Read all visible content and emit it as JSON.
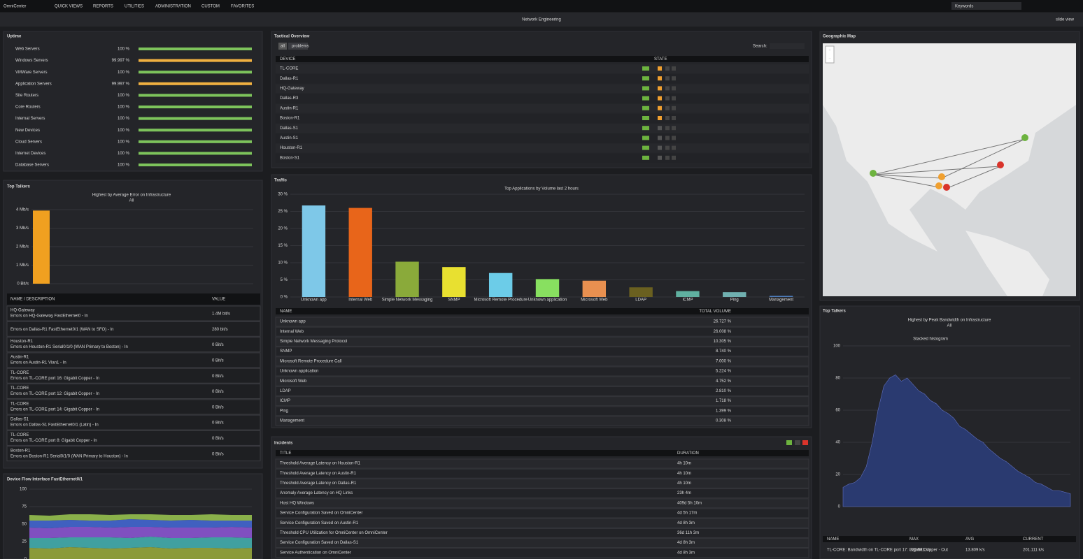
{
  "nav": {
    "logo": "OmniCenter",
    "menu": [
      "QUICK VIEWS",
      "REPORTS",
      "UTILITIES",
      "ADMINISTRATION",
      "CUSTOM",
      "FAVORITES"
    ],
    "search": "Keywords"
  },
  "header": {
    "title": "Network Engineering",
    "slide_view": "slide view"
  },
  "uptime": {
    "title": "Uptime",
    "rows": [
      {
        "name": "Web Servers",
        "value": 100,
        "label": "100 %",
        "color": "#7dc35b"
      },
      {
        "name": "Windows Servers",
        "value": 99.997,
        "label": "99.997 %",
        "color": "#f0b040"
      },
      {
        "name": "VMWare Servers",
        "value": 100,
        "label": "100 %",
        "color": "#7dc35b"
      },
      {
        "name": "Application Servers",
        "value": 99.997,
        "label": "99.997 %",
        "color": "#f0b040"
      },
      {
        "name": "Site Routers",
        "value": 100,
        "label": "100 %",
        "color": "#7dc35b"
      },
      {
        "name": "Core Routers",
        "value": 100,
        "label": "100 %",
        "color": "#7dc35b"
      },
      {
        "name": "Internal Servers",
        "value": 100,
        "label": "100 %",
        "color": "#7dc35b"
      },
      {
        "name": "New Devices",
        "value": 100,
        "label": "100 %",
        "color": "#7dc35b"
      },
      {
        "name": "Cloud Servers",
        "value": 100,
        "label": "100 %",
        "color": "#7dc35b"
      },
      {
        "name": "Internet Devices",
        "value": 100,
        "label": "100 %",
        "color": "#7dc35b"
      },
      {
        "name": "Database Servers",
        "value": 100,
        "label": "100 %",
        "color": "#7dc35b"
      }
    ]
  },
  "tactical": {
    "title": "Tactical Overview",
    "filters": [
      "all",
      "problems"
    ],
    "search": "Search:",
    "columns": [
      "DEVICE",
      "STATE"
    ],
    "devices": [
      "TL-CORE",
      "Dallas-R1",
      "HQ-Gateway",
      "Dallas-R3",
      "Austin-R1",
      "Boston-R1",
      "Dallas-S1",
      "Austin-S1",
      "Houston-R1",
      "Boston-S1"
    ]
  },
  "top_talkers_errors": {
    "title": "Top Talkers",
    "subtitle": "Highest by Average Error on Infrastructure",
    "scope": "All",
    "chart": {
      "type": "bar",
      "values": [
        3.95
      ],
      "color": "#f0a020",
      "ylim": [
        0,
        4
      ],
      "yticks": [
        {
          "value": 0,
          "label": "0 Bit/s"
        },
        {
          "value": 1,
          "label": "1 Mb/s"
        },
        {
          "value": 2,
          "label": "2 Mb/s"
        },
        {
          "value": 3,
          "label": "3 Mb/s"
        },
        {
          "value": 4,
          "label": "4 Mb/s"
        }
      ]
    },
    "columns": [
      "NAME / DESCRIPTION",
      "VALUE"
    ],
    "rows": [
      {
        "name": "HQ-Gateway",
        "color": "#f0a020",
        "description": "Errors on HQ-Gateway FastEthernet0 - In",
        "value": "1.4M bit/s"
      },
      {
        "description": "Errors on Dallas-R1 FastEthernet0/1 (WAN to SFO) - In",
        "value": "280 bit/s"
      },
      {
        "name": "Houston-R1",
        "color": "#5aa0e0",
        "description": "Errors on Houston-R1 Serial0/1/0 (WAN Primary to Boston) - In",
        "value": "0 Bit/s"
      },
      {
        "name": "Austin-R1",
        "color": "#a070e0",
        "description": "Errors on Austin-R1 Vlan1 - In",
        "value": "0 Bit/s"
      },
      {
        "name": "TL-CORE",
        "color": "#e05050",
        "description": "Errors on TL-CORE port 16: Gigabit Copper - In",
        "value": "0 Bit/s"
      },
      {
        "name": "TL-CORE",
        "color": "#70c040",
        "description": "Errors on TL-CORE port 12: Gigabit Copper - In",
        "value": "0 Bit/s"
      },
      {
        "name": "TL-CORE",
        "color": "#a06040",
        "description": "Errors on TL-CORE port 14: Gigabit Copper - In",
        "value": "0 Bit/s"
      },
      {
        "name": "Dallas-S1",
        "color": "#a0a040",
        "description": "Errors on Dallas-S1 FastEthernet0/1 (Latin) - In",
        "value": "0 Bit/s"
      },
      {
        "name": "TL-CORE",
        "color": "#e060c0",
        "description": "Errors on TL-CORE port 8: Gigabit Copper - In",
        "value": "0 Bit/s"
      },
      {
        "name": "Boston-R1",
        "color": "#60c060",
        "description": "Errors on Boston-R1 Serial0/1/0 (WAN Primary to Houston) - In",
        "value": "0 Bit/s"
      }
    ]
  },
  "traffic": {
    "title": "Traffic",
    "subtitle": "Top Applications by Volume last 2 hours",
    "chart": {
      "type": "bar",
      "categories": [
        "Unknown app",
        "Internal Web",
        "Simple Network Messaging",
        "SNMP",
        "Microsoft Remote Procedure",
        "Unknown application",
        "Microsoft Web",
        "LDAP",
        "ICMP",
        "Ping",
        "Management"
      ],
      "values": [
        26.727,
        26.008,
        10.305,
        8.74,
        7.0,
        5.224,
        4.752,
        2.81,
        1.718,
        1.399,
        0.308
      ],
      "colors": [
        "#7ec8e8",
        "#e8651a",
        "#8aaa3a",
        "#e8e030",
        "#6ccce8",
        "#88e060",
        "#e89050",
        "#6a6020",
        "#60b0a0",
        "#70b0b0",
        "#5080c0"
      ],
      "ylim": [
        0,
        30
      ],
      "yticks": [
        {
          "value": 0,
          "label": "0 %"
        },
        {
          "value": 5,
          "label": "5 %"
        },
        {
          "value": 10,
          "label": "10 %"
        },
        {
          "value": 15,
          "label": "15 %"
        },
        {
          "value": 20,
          "label": "20 %"
        },
        {
          "value": 25,
          "label": "25 %"
        },
        {
          "value": 30,
          "label": "30 %"
        }
      ],
      "grid": true
    },
    "columns": [
      "NAME",
      "TOTAL VOLUME"
    ],
    "table_names": [
      "Unknown app",
      "Internal Web",
      "Simple Network Messaging Protocol",
      "SNMP",
      "Microsoft Remote Procedure Call",
      "Unknown application",
      "Microsoft Web",
      "LDAP",
      "ICMP",
      "Ping",
      "Management"
    ],
    "value_labels": [
      "26.727 %",
      "26.008 %",
      "10.305 %",
      "8.740 %",
      "7.000 %",
      "5.224 %",
      "4.752 %",
      "2.810 %",
      "1.718 %",
      "1.399 %",
      "0.308 %"
    ]
  },
  "incidents": {
    "title": "Incidents",
    "columns": [
      "TITLE",
      "DURATION"
    ],
    "rows": [
      [
        "Threshold Average Latency on Houston-R1",
        "4h 10m"
      ],
      [
        "Threshold Average Latency on Austin-R1",
        "4h 10m"
      ],
      [
        "Threshold Average Latency on Dallas-R1",
        "4h 10m"
      ],
      [
        "Anomaly Average Latency on HQ Links",
        "23h 4m"
      ],
      [
        "Host HQ Windows",
        "409d 5h 10m"
      ],
      [
        "Service Configuration Saved on OmniCenter",
        "4d 5h 17m"
      ],
      [
        "Service Configuration Saved on Austin-R1",
        "4d 8h 3m"
      ],
      [
        "Threshold CPU Utilization for OmniCenter on OmniCenter",
        "36d 11h 3m"
      ],
      [
        "Service Configuration Saved on Dallas-S1",
        "4d 8h 3m"
      ],
      [
        "Service Authentication on OmniCenter",
        "4d 8h 3m"
      ]
    ]
  },
  "map": {
    "title": "Geographic Map",
    "zoom": [
      "+",
      "−"
    ]
  },
  "device_flow": {
    "title": "Device Flow Interface FastEthernet0/1",
    "chart": {
      "type": "stacked_area",
      "ylim": [
        0,
        100
      ],
      "yticks": [
        0,
        25,
        50,
        75,
        100
      ],
      "series": [
        {
          "color": "#8a9a3a",
          "values": [
            16,
            15,
            17,
            16,
            15,
            16,
            17,
            15,
            16,
            16,
            15,
            16
          ]
        },
        {
          "color": "#40a0a0",
          "values": [
            14,
            15,
            14,
            15,
            16,
            14,
            15,
            15,
            14,
            15,
            16,
            14
          ]
        },
        {
          "color": "#8050c0",
          "values": [
            15,
            14,
            15,
            15,
            14,
            16,
            14,
            15,
            15,
            14,
            15,
            15
          ]
        },
        {
          "color": "#4060c0",
          "values": [
            10,
            11,
            10,
            9,
            10,
            11,
            10,
            10,
            11,
            10,
            9,
            10
          ]
        },
        {
          "color": "#8ab04a",
          "values": [
            8,
            7,
            8,
            9,
            8,
            7,
            8,
            8,
            7,
            9,
            8,
            8
          ]
        }
      ]
    }
  },
  "top_talkers_bandwidth": {
    "title": "Top Talkers",
    "subtitle": "Highest by Peak Bandwidth on Infrastructure",
    "scope": "All",
    "chart": {
      "type": "area",
      "title": "Stacked histogram",
      "color": "#2a3a70",
      "ylim": [
        0,
        100
      ],
      "yticks": [
        0,
        20,
        40,
        60,
        80,
        100
      ],
      "values": [
        12,
        14,
        15,
        18,
        25,
        40,
        60,
        75,
        80,
        82,
        78,
        80,
        76,
        72,
        70,
        66,
        64,
        60,
        58,
        55,
        50,
        48,
        45,
        42,
        40,
        36,
        33,
        30,
        28,
        25,
        22,
        20,
        18,
        15,
        14,
        12,
        10,
        10,
        9,
        8
      ]
    },
    "columns": [
      "NAME",
      "MAX",
      "AVG",
      "CURRENT"
    ],
    "rows": [
      [
        "TL-CORE: Bandwidth on TL-CORE port 17: Gigabit Copper - Out",
        "220.981 k/s",
        "13.809 k/s",
        "201.111 k/s"
      ]
    ]
  }
}
